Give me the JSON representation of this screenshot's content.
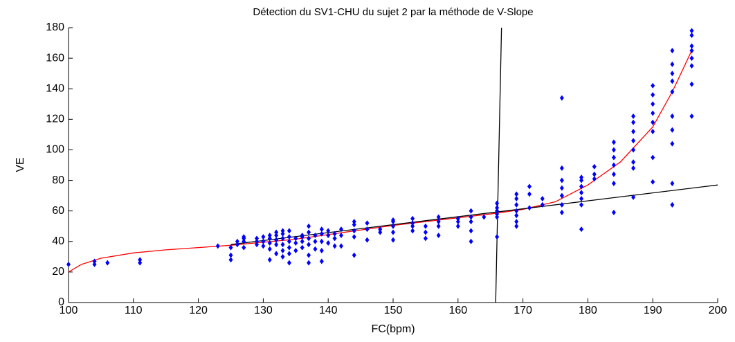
{
  "chart_data": {
    "type": "scatter",
    "title": "Détection du SV1-CHU du sujet 2 par la méthode de V-Slope",
    "x_label": "FC(bpm)",
    "y_label": "VE",
    "xlim": [
      100,
      200
    ],
    "xticks": [
      100,
      110,
      120,
      130,
      140,
      150,
      160,
      170,
      180,
      190,
      200
    ],
    "ylim": [
      0,
      180
    ],
    "yticks": [
      0,
      20,
      40,
      60,
      80,
      100,
      120,
      140,
      160,
      180
    ],
    "grid": false,
    "series": [
      {
        "type": "scatter",
        "color": "#0000ff",
        "x": [
          100,
          104,
          104,
          106,
          111,
          111,
          123,
          125,
          125,
          125,
          126,
          126,
          127,
          127,
          127,
          127,
          129,
          129,
          129,
          130,
          130,
          130,
          131,
          131,
          131,
          131,
          131,
          132,
          132,
          132,
          132,
          132,
          133,
          133,
          133,
          133,
          133,
          133,
          134,
          134,
          134,
          134,
          134,
          134,
          135,
          135,
          135,
          136,
          136,
          136,
          136,
          137,
          137,
          137,
          137,
          137,
          137,
          138,
          138,
          138,
          139,
          139,
          139,
          139,
          139,
          140,
          140,
          140,
          141,
          141,
          141,
          142,
          142,
          142,
          144,
          144,
          144,
          144,
          144,
          146,
          146,
          146,
          148,
          148,
          150,
          150,
          150,
          150,
          150,
          153,
          153,
          153,
          153,
          155,
          155,
          155,
          157,
          157,
          157,
          157,
          160,
          160,
          160,
          162,
          162,
          162,
          162,
          162,
          164,
          166,
          166,
          166,
          166,
          166,
          166,
          169,
          169,
          169,
          169,
          169,
          169,
          169,
          171,
          171,
          171,
          173,
          173,
          176,
          176,
          176,
          176,
          176,
          176,
          176,
          179,
          179,
          179,
          179,
          179,
          179,
          179,
          181,
          181,
          181,
          184,
          184,
          184,
          184,
          184,
          184,
          184,
          187,
          187,
          187,
          187,
          187,
          187,
          187,
          187,
          190,
          190,
          190,
          190,
          190,
          190,
          190,
          190,
          193,
          193,
          193,
          193,
          193,
          193,
          193,
          193,
          193,
          193,
          196,
          196,
          196,
          196,
          196,
          196,
          196,
          196
        ],
        "values": [
          25,
          25,
          27,
          26,
          26,
          28,
          37,
          28,
          31,
          36,
          38,
          40,
          36,
          40,
          42,
          43,
          38,
          40,
          42,
          37,
          40,
          43,
          28,
          35,
          39,
          42,
          44,
          32,
          38,
          41,
          44,
          46,
          30,
          34,
          38,
          42,
          45,
          47,
          26,
          32,
          36,
          40,
          43,
          47,
          34,
          39,
          42,
          36,
          40,
          43,
          44,
          26,
          31,
          38,
          42,
          46,
          50,
          35,
          40,
          44,
          27,
          34,
          40,
          45,
          48,
          39,
          44,
          47,
          37,
          42,
          45,
          37,
          44,
          48,
          31,
          43,
          47,
          51,
          53,
          41,
          48,
          52,
          46,
          48,
          41,
          46,
          50,
          53,
          54,
          47,
          50,
          52,
          55,
          42,
          46,
          50,
          44,
          50,
          53,
          56,
          50,
          53,
          55,
          40,
          47,
          53,
          56,
          60,
          56,
          43,
          56,
          58,
          60,
          62,
          65,
          50,
          53,
          57,
          60,
          64,
          68,
          71,
          62,
          71,
          76,
          64,
          68,
          59,
          64,
          70,
          75,
          80,
          88,
          134,
          48,
          64,
          68,
          72,
          76,
          80,
          82,
          81,
          84,
          89,
          59,
          78,
          84,
          90,
          95,
          100,
          105,
          69,
          88,
          92,
          100,
          106,
          112,
          118,
          122,
          79,
          95,
          112,
          118,
          124,
          130,
          136,
          142,
          64,
          78,
          104,
          113,
          122,
          138,
          145,
          150,
          156,
          165,
          122,
          143,
          155,
          160,
          165,
          168,
          175,
          178
        ]
      },
      {
        "type": "line",
        "color": "#ff0000",
        "x": [
          100,
          102,
          105,
          110,
          115,
          120,
          125,
          130,
          135,
          140,
          145,
          150,
          155,
          160,
          165,
          170,
          175,
          180,
          185,
          190,
          193,
          196
        ],
        "values": [
          20,
          25,
          29,
          32.5,
          34.5,
          36,
          37.5,
          39.5,
          41.5,
          44.5,
          47.5,
          50.5,
          53,
          55.5,
          58,
          61,
          66,
          77,
          92,
          115,
          138,
          165
        ]
      },
      {
        "type": "line",
        "color": "#000000",
        "x": [
          125,
          200
        ],
        "values": [
          38,
          77
        ]
      },
      {
        "type": "line",
        "color": "#000000",
        "x": [
          165.8,
          166.7
        ],
        "values": [
          0,
          180
        ]
      }
    ]
  }
}
